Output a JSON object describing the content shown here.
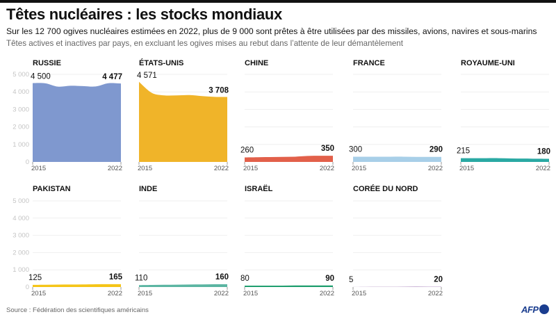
{
  "header": {
    "title": "Têtes nucléaires : les stocks mondiaux",
    "subtitle": "Sur les 12 700 ogives nucléaires estimées en 2022, plus de 9 000 sont prêtes à être utilisées par des missiles, avions, navires et sous-marins",
    "description": "Têtes actives et inactives par pays, en excluant les ogives mises au rebut dans l’attente de leur démantèlement"
  },
  "footer": {
    "source": "Source : Fédération des scientifiques américains",
    "logo_text": "AFP",
    "logo_color": "#1a3d8f"
  },
  "chart_data": {
    "type": "area",
    "layout": "small-multiples",
    "title": "Têtes nucléaires : les stocks mondiaux",
    "x": [
      2015,
      2016,
      2017,
      2018,
      2019,
      2020,
      2021,
      2022
    ],
    "x_tick_labels": [
      "2015",
      "2022"
    ],
    "ylim": [
      0,
      5000
    ],
    "y_ticks": [
      0,
      1000,
      2000,
      3000,
      4000,
      5000
    ],
    "y_tick_labels": [
      "0",
      "1 000",
      "2 000",
      "3 000",
      "4 000",
      "5 000"
    ],
    "grid": true,
    "series": [
      {
        "name": "Russie",
        "color": "#7f98cf",
        "start_label": "4 500",
        "end_label": "4 477",
        "values": [
          4500,
          4490,
          4300,
          4350,
          4330,
          4310,
          4495,
          4477
        ]
      },
      {
        "name": "États-unis",
        "color": "#f0b429",
        "start_label": "4 571",
        "end_label": "3 708",
        "values": [
          4571,
          3950,
          3800,
          3800,
          3820,
          3760,
          3715,
          3708
        ]
      },
      {
        "name": "Chine",
        "color": "#e2604a",
        "start_label": "260",
        "end_label": "350",
        "values": [
          260,
          270,
          280,
          290,
          300,
          340,
          350,
          350
        ]
      },
      {
        "name": "France",
        "color": "#a8cfe8",
        "start_label": "300",
        "end_label": "290",
        "values": [
          300,
          300,
          300,
          300,
          300,
          290,
          290,
          290
        ]
      },
      {
        "name": "Royaume-uni",
        "color": "#2aa9a3",
        "start_label": "215",
        "end_label": "180",
        "values": [
          215,
          215,
          215,
          215,
          200,
          195,
          185,
          180
        ]
      },
      {
        "name": "Pakistan",
        "color": "#f5c518",
        "start_label": "125",
        "end_label": "165",
        "values": [
          125,
          130,
          140,
          145,
          150,
          160,
          165,
          165
        ]
      },
      {
        "name": "Inde",
        "color": "#5bb5a2",
        "start_label": "110",
        "end_label": "160",
        "values": [
          110,
          120,
          130,
          135,
          145,
          150,
          160,
          160
        ]
      },
      {
        "name": "Israël",
        "color": "#1f9e6e",
        "start_label": "80",
        "end_label": "90",
        "values": [
          80,
          80,
          80,
          80,
          90,
          90,
          90,
          90
        ]
      },
      {
        "name": "corée du nord",
        "color": "#b89ac8",
        "start_label": "5",
        "end_label": "20",
        "values": [
          5,
          10,
          15,
          15,
          20,
          30,
          20,
          20
        ]
      }
    ]
  }
}
